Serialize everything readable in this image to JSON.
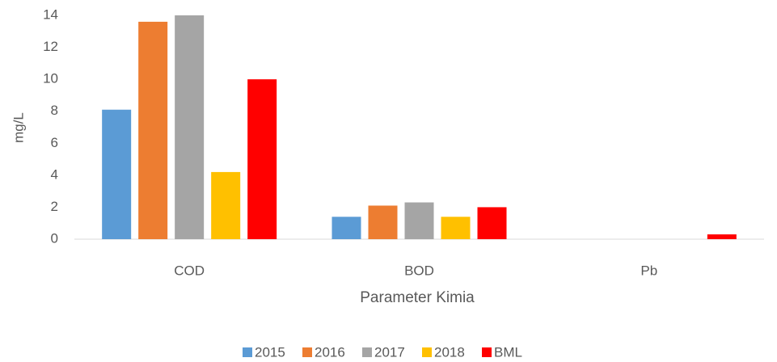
{
  "chart_data": {
    "type": "bar",
    "categories": [
      "COD",
      "BOD",
      "Pb"
    ],
    "series": [
      {
        "name": "2015",
        "color": "#5b9bd5",
        "values": [
          8.1,
          1.4,
          0
        ]
      },
      {
        "name": "2016",
        "color": "#ed7d31",
        "values": [
          13.6,
          2.1,
          0
        ]
      },
      {
        "name": "2017",
        "color": "#a5a5a5",
        "values": [
          14,
          2.3,
          0
        ]
      },
      {
        "name": "2018",
        "color": "#ffc000",
        "values": [
          4.2,
          1.4,
          0
        ]
      },
      {
        "name": "BML",
        "color": "#ff0000",
        "values": [
          10,
          2,
          0.3
        ]
      }
    ],
    "ylabel": "mg/L",
    "xlabel": "Parameter Kimia",
    "ylim": [
      0,
      14
    ],
    "yticks": [
      0,
      2,
      4,
      6,
      8,
      10,
      12,
      14
    ],
    "grid": false,
    "legend": "bottom"
  }
}
